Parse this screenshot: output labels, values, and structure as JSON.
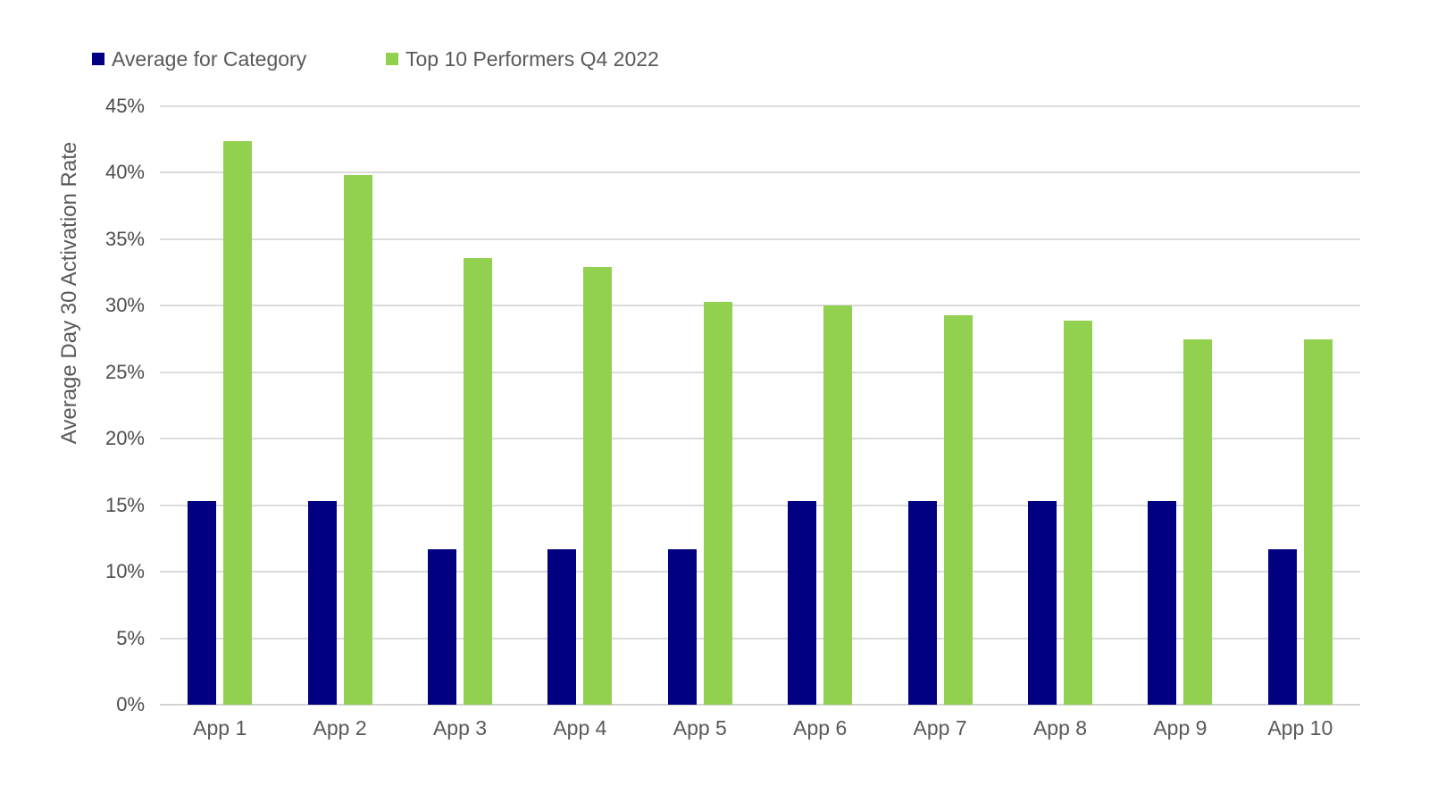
{
  "legend": {
    "position": "top-left",
    "items": [
      {
        "label": "Average for Category",
        "color": "#000080"
      },
      {
        "label": "Top 10 Performers Q4 2022",
        "color": "#92D050"
      }
    ]
  },
  "colors": {
    "background": "#FFFFFF",
    "gridline": "#DBDBDB",
    "axis_line": "#D2D2D2",
    "text": "#595959",
    "series_average": "#000080",
    "series_top10": "#92D050"
  },
  "chart_data": {
    "type": "bar",
    "title": "",
    "xlabel": "",
    "ylabel": "Average Day 30 Activation Rate",
    "ylim": [
      0,
      45
    ],
    "y_tick_step": 5,
    "y_tick_labels": [
      "0%",
      "5%",
      "10%",
      "15%",
      "20%",
      "25%",
      "30%",
      "35%",
      "40%",
      "45%"
    ],
    "grid": true,
    "legend_position": "top-left",
    "categories": [
      "App 1",
      "App 2",
      "App 3",
      "App 4",
      "App 5",
      "App 6",
      "App 7",
      "App 8",
      "App 9",
      "App 10"
    ],
    "series": [
      {
        "name": "Average for Category",
        "color": "#000080",
        "values": [
          15.3,
          15.3,
          11.7,
          11.7,
          11.7,
          15.3,
          15.3,
          15.3,
          15.3,
          11.7
        ]
      },
      {
        "name": "Top 10 Performers Q4 2022",
        "color": "#92D050",
        "values": [
          42.4,
          39.8,
          33.6,
          32.9,
          30.3,
          30.0,
          29.3,
          28.9,
          27.5,
          27.5
        ]
      }
    ]
  }
}
